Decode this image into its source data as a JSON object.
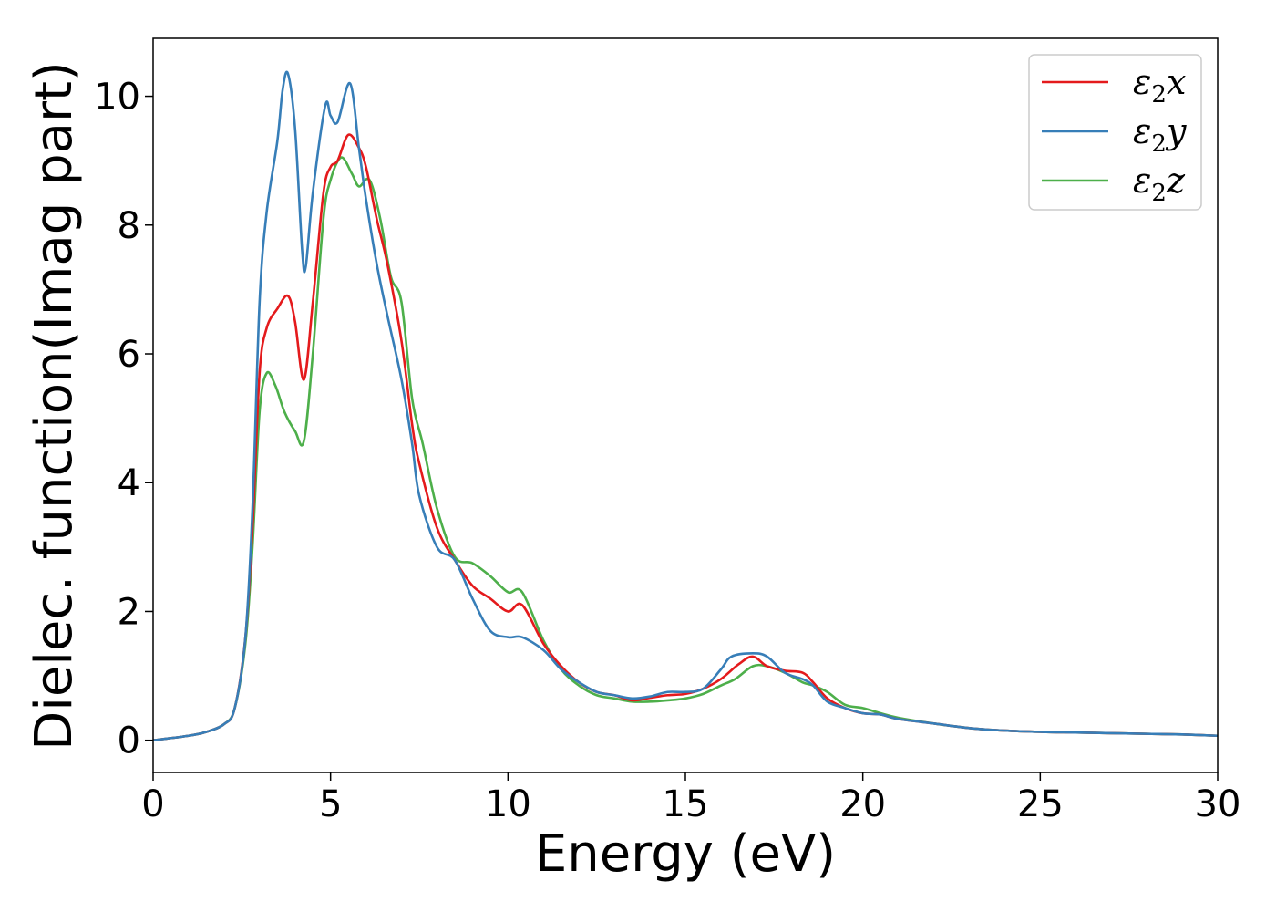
{
  "chart_data": {
    "type": "line",
    "xlabel": "Energy (eV)",
    "ylabel": "Dielec. function(Imag part)",
    "xlim": [
      0,
      30
    ],
    "ylim": [
      -0.5,
      10.9
    ],
    "xticks": [
      0,
      5,
      10,
      15,
      20,
      25,
      30
    ],
    "yticks": [
      0,
      2,
      4,
      6,
      8,
      10
    ],
    "xtick_labels": [
      "0",
      "5",
      "10",
      "15",
      "20",
      "25",
      "30"
    ],
    "ytick_labels": [
      "0",
      "2",
      "4",
      "6",
      "8",
      "10"
    ],
    "grid": false,
    "legend_position": "top-right",
    "series": [
      {
        "name": "ε₂x",
        "legend": {
          "base": "ε",
          "sub": "2",
          "axis": "x"
        },
        "color": "#e41a1c",
        "x": [
          0,
          1,
          1.5,
          2,
          2.3,
          2.6,
          2.8,
          3.0,
          3.2,
          3.5,
          3.8,
          4.0,
          4.25,
          4.5,
          4.8,
          5.0,
          5.2,
          5.5,
          5.8,
          6.0,
          6.3,
          6.6,
          7.0,
          7.3,
          7.5,
          8.0,
          8.5,
          9.0,
          9.5,
          10.0,
          10.4,
          11.0,
          11.5,
          12.0,
          12.5,
          13.0,
          13.5,
          14.0,
          14.5,
          15.0,
          15.5,
          16.0,
          16.5,
          16.9,
          17.3,
          17.8,
          18.3,
          18.6,
          19.0,
          19.5,
          20.0,
          20.5,
          21.0,
          22.0,
          23.0,
          24.0,
          25.0,
          26.0,
          27.0,
          28.0,
          29.0,
          30.0
        ],
        "y": [
          0.0,
          0.07,
          0.13,
          0.25,
          0.5,
          1.6,
          3.3,
          5.7,
          6.4,
          6.7,
          6.9,
          6.5,
          5.6,
          6.8,
          8.5,
          8.9,
          9.0,
          9.4,
          9.2,
          8.9,
          8.1,
          7.4,
          6.2,
          4.9,
          4.3,
          3.3,
          2.8,
          2.4,
          2.2,
          2.0,
          2.1,
          1.5,
          1.15,
          0.9,
          0.75,
          0.7,
          0.62,
          0.66,
          0.7,
          0.72,
          0.8,
          0.95,
          1.18,
          1.3,
          1.15,
          1.08,
          1.05,
          0.9,
          0.65,
          0.5,
          0.42,
          0.4,
          0.33,
          0.26,
          0.19,
          0.15,
          0.13,
          0.12,
          0.11,
          0.1,
          0.09,
          0.07
        ]
      },
      {
        "name": "ε₂y",
        "legend": {
          "base": "ε",
          "sub": "2",
          "axis": "y"
        },
        "color": "#377eb8",
        "x": [
          0,
          1,
          1.5,
          2,
          2.3,
          2.6,
          2.8,
          3.0,
          3.2,
          3.5,
          3.65,
          3.8,
          4.0,
          4.2,
          4.3,
          4.5,
          4.85,
          5.0,
          5.2,
          5.55,
          5.8,
          6.0,
          6.3,
          6.6,
          7.0,
          7.3,
          7.5,
          8.0,
          8.5,
          9.0,
          9.5,
          10.0,
          10.4,
          11.0,
          11.5,
          12.0,
          12.5,
          13.0,
          13.5,
          14.0,
          14.5,
          15.0,
          15.5,
          16.0,
          16.3,
          16.9,
          17.3,
          17.8,
          18.3,
          18.6,
          19.0,
          19.5,
          20.0,
          20.5,
          21.0,
          22.0,
          23.0,
          24.0,
          25.0,
          26.0,
          27.0,
          28.0,
          29.0,
          30.0
        ],
        "y": [
          0.0,
          0.07,
          0.13,
          0.25,
          0.5,
          1.6,
          3.6,
          6.8,
          8.2,
          9.3,
          10.1,
          10.35,
          9.5,
          7.6,
          7.35,
          8.5,
          9.85,
          9.7,
          9.6,
          10.2,
          9.2,
          8.4,
          7.4,
          6.6,
          5.6,
          4.6,
          3.8,
          3.0,
          2.8,
          2.2,
          1.7,
          1.6,
          1.6,
          1.4,
          1.1,
          0.9,
          0.75,
          0.7,
          0.65,
          0.68,
          0.75,
          0.75,
          0.8,
          1.1,
          1.3,
          1.35,
          1.3,
          1.05,
          0.95,
          0.85,
          0.6,
          0.5,
          0.42,
          0.4,
          0.33,
          0.26,
          0.19,
          0.15,
          0.13,
          0.12,
          0.11,
          0.1,
          0.09,
          0.07
        ]
      },
      {
        "name": "ε₂z",
        "legend": {
          "base": "ε",
          "sub": "2",
          "axis": "z"
        },
        "color": "#4daf4a",
        "x": [
          0,
          1,
          1.5,
          2,
          2.3,
          2.6,
          2.8,
          3.0,
          3.2,
          3.45,
          3.7,
          4.0,
          4.25,
          4.5,
          4.8,
          5.0,
          5.3,
          5.6,
          5.8,
          6.1,
          6.4,
          6.7,
          7.0,
          7.3,
          7.6,
          8.0,
          8.5,
          9.0,
          9.5,
          10.0,
          10.4,
          11.0,
          11.5,
          12.0,
          12.5,
          13.0,
          13.5,
          14.0,
          14.5,
          15.0,
          15.5,
          16.0,
          16.4,
          16.9,
          17.3,
          17.8,
          18.3,
          18.6,
          19.0,
          19.5,
          20.0,
          20.5,
          21.0,
          22.0,
          23.0,
          24.0,
          25.0,
          26.0,
          27.0,
          28.0,
          29.0,
          30.0
        ],
        "y": [
          0.0,
          0.07,
          0.13,
          0.25,
          0.5,
          1.5,
          3.0,
          5.1,
          5.7,
          5.5,
          5.1,
          4.8,
          4.65,
          6.0,
          8.1,
          8.7,
          9.05,
          8.8,
          8.6,
          8.7,
          8.1,
          7.2,
          6.8,
          5.3,
          4.6,
          3.6,
          2.85,
          2.75,
          2.55,
          2.3,
          2.3,
          1.55,
          1.1,
          0.85,
          0.7,
          0.65,
          0.6,
          0.6,
          0.62,
          0.65,
          0.72,
          0.85,
          0.95,
          1.15,
          1.15,
          1.05,
          0.9,
          0.85,
          0.75,
          0.55,
          0.5,
          0.42,
          0.35,
          0.26,
          0.19,
          0.15,
          0.13,
          0.12,
          0.11,
          0.1,
          0.09,
          0.07
        ]
      }
    ]
  }
}
